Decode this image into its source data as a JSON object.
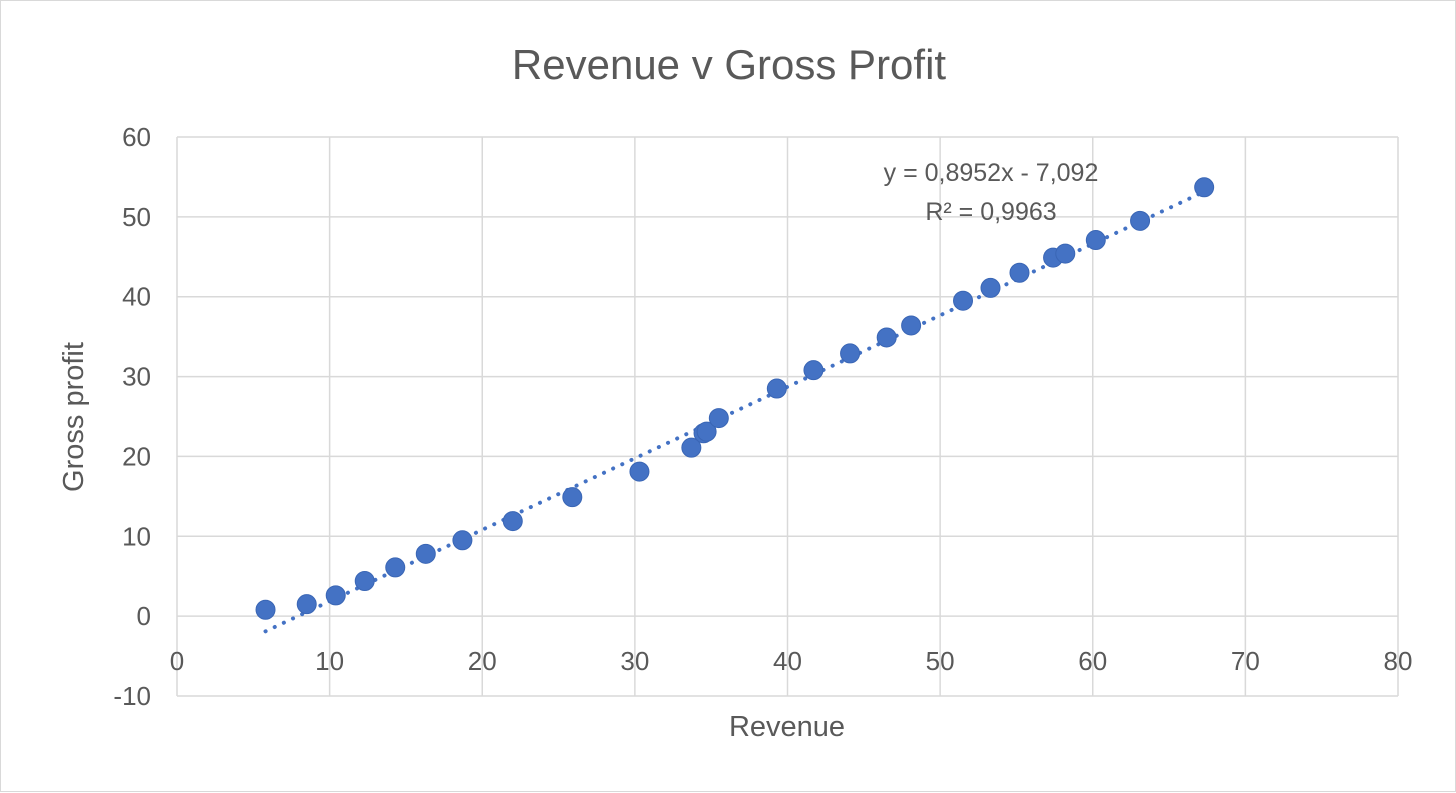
{
  "chart_data": {
    "type": "scatter",
    "title": "Revenue v Gross Profit",
    "xlabel": "Revenue",
    "ylabel": "Gross profit",
    "xlim": [
      0,
      80
    ],
    "ylim": [
      -10,
      60
    ],
    "x_ticks": [
      0,
      10,
      20,
      30,
      40,
      50,
      60,
      70,
      80
    ],
    "y_ticks": [
      -10,
      0,
      10,
      20,
      30,
      40,
      50,
      60
    ],
    "grid": true,
    "legend": "none",
    "point_color": "#4472c4",
    "trendline": {
      "type": "linear",
      "slope": 0.8952,
      "intercept": -7.092,
      "x_range": [
        5.8,
        67.3
      ],
      "style": "dotted",
      "equation_label": "y = 0,8952x - 7,092",
      "r2_label": "R² = 0,9963"
    },
    "series": [
      {
        "x": [
          5.8,
          8.5,
          10.4,
          12.3,
          14.3,
          16.3,
          18.7,
          22.0,
          25.9,
          30.3,
          33.7,
          34.5,
          34.7,
          35.5,
          39.3,
          41.7,
          44.1,
          46.5,
          48.1,
          51.5,
          53.3,
          55.2,
          57.4,
          58.2,
          60.2,
          63.1,
          67.3
        ],
        "y": [
          0.8,
          1.5,
          2.6,
          4.4,
          6.1,
          7.8,
          9.5,
          11.9,
          14.9,
          18.1,
          21.1,
          22.9,
          23.1,
          24.8,
          28.5,
          30.8,
          32.9,
          34.9,
          36.4,
          39.5,
          41.1,
          43.0,
          44.9,
          45.4,
          47.1,
          49.5,
          53.7
        ]
      }
    ]
  }
}
